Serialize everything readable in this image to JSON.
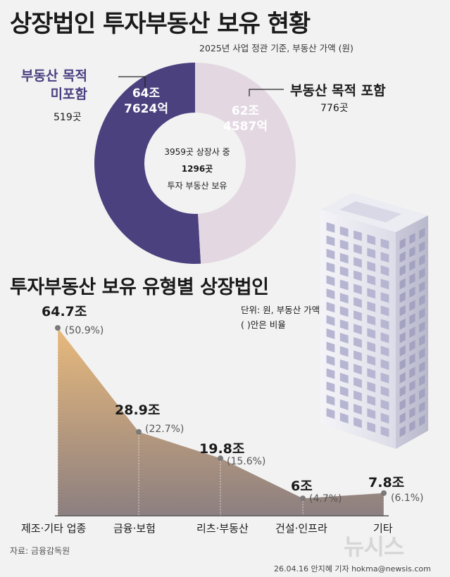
{
  "header": {
    "title": "상장법인 투자부동산 보유 현황",
    "subtitle": "2025년 사업 정관 기준, 부동산 가액 (원)"
  },
  "donut": {
    "left_label_line1": "부동산 목적",
    "left_label_line2": "미포함",
    "left_count": "519곳",
    "left_value_line1": "64조",
    "left_value_line2": "7624억",
    "right_label": "부동산 목적 포함",
    "right_count": "776곳",
    "right_value_line1": "62조",
    "right_value_line2": "4587억",
    "center_line1": "3959곳 상장사 중",
    "center_line2": "1296곳",
    "center_line3": "투자 부동산 보유",
    "left_color": "#4a417e",
    "right_color": "#e3d8e2",
    "slices": [
      {
        "name": "부동산 목적 미포함",
        "value": 64.7624
      },
      {
        "name": "부동산 목적 포함",
        "value": 62.4587
      }
    ]
  },
  "section": {
    "title": "투자부동산 보유 유형별 상장법인",
    "unit_line1": "단위: 원, 부동산 가액",
    "unit_line2": "( )안은 비율"
  },
  "chart_data": {
    "type": "area",
    "categories": [
      "제조·기타 업종",
      "금융·보험",
      "리츠·부동산",
      "건설·인프라",
      "기타"
    ],
    "values": [
      64.7,
      28.9,
      19.8,
      6,
      7.8
    ],
    "value_labels": [
      "64.7조",
      "28.9조",
      "19.8조",
      "6조",
      "7.8조"
    ],
    "percent_labels": [
      "(50.9%)",
      "(22.7%)",
      "(15.6%)",
      "(4.7%)",
      "(6.1%)"
    ],
    "ylim": [
      0,
      70
    ],
    "grid": false,
    "fill_top_color": "#e8b97c",
    "fill_bottom_color": "#8c7f80"
  },
  "footer": {
    "source": "자료: 금융감독원",
    "credit": "26.04.16 안지혜 기자 hokma@newsis.com",
    "watermark": "뉴시스"
  }
}
